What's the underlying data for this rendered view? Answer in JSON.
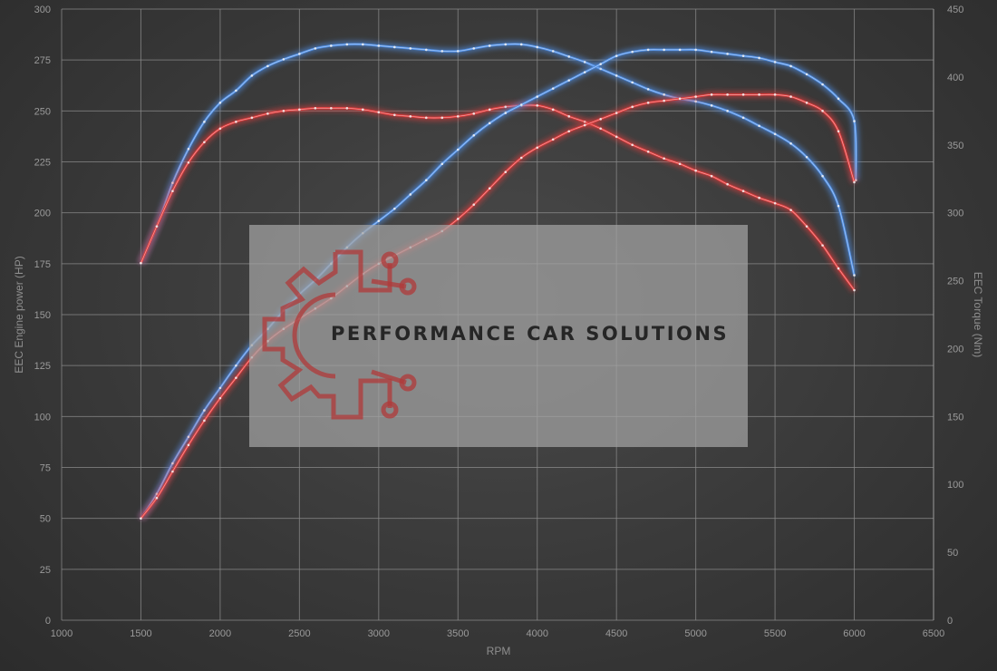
{
  "chart_data": {
    "type": "line",
    "xlabel": "RPM",
    "ylabel_left": "EEC Engine power (HP)",
    "ylabel_right": "EEC Torque (Nm)",
    "xlim": [
      1000,
      6500
    ],
    "ylim_left": [
      0,
      300
    ],
    "ylim_right": [
      0,
      450
    ],
    "x_ticks": [
      "1000",
      "1500",
      "2000",
      "2500",
      "3000",
      "3500",
      "4000",
      "4500",
      "5000",
      "5500",
      "6000",
      "6500"
    ],
    "y_left_ticks": [
      "0",
      "25",
      "50",
      "75",
      "100",
      "125",
      "150",
      "175",
      "200",
      "225",
      "250",
      "275",
      "300"
    ],
    "y_right_ticks": [
      "0",
      "50",
      "100",
      "150",
      "200",
      "250",
      "300",
      "350",
      "400",
      "450"
    ],
    "grid": true,
    "colors": {
      "tuned": "#4f8fe6",
      "stock": "#e03a3a"
    },
    "series": [
      {
        "axis": "right",
        "color_key": "tuned",
        "points": [
          [
            1500,
            263
          ],
          [
            1600,
            290
          ],
          [
            1700,
            322
          ],
          [
            1800,
            347
          ],
          [
            1900,
            367
          ],
          [
            2000,
            381
          ],
          [
            2100,
            390
          ],
          [
            2200,
            401
          ],
          [
            2300,
            408
          ],
          [
            2400,
            413
          ],
          [
            2500,
            417
          ],
          [
            2600,
            421
          ],
          [
            2700,
            423
          ],
          [
            2800,
            424
          ],
          [
            2900,
            424
          ],
          [
            3000,
            423
          ],
          [
            3100,
            422
          ],
          [
            3200,
            421
          ],
          [
            3300,
            420
          ],
          [
            3400,
            419
          ],
          [
            3500,
            419
          ],
          [
            3600,
            421
          ],
          [
            3700,
            423
          ],
          [
            3800,
            424
          ],
          [
            3900,
            424
          ],
          [
            4000,
            422
          ],
          [
            4100,
            419
          ],
          [
            4200,
            415
          ],
          [
            4300,
            411
          ],
          [
            4400,
            406
          ],
          [
            4500,
            401
          ],
          [
            4600,
            396
          ],
          [
            4700,
            391
          ],
          [
            4800,
            387
          ],
          [
            4900,
            384
          ],
          [
            5000,
            382
          ],
          [
            5100,
            379
          ],
          [
            5200,
            375
          ],
          [
            5300,
            370
          ],
          [
            5400,
            364
          ],
          [
            5500,
            358
          ],
          [
            5600,
            351
          ],
          [
            5700,
            341
          ],
          [
            5800,
            327
          ],
          [
            5900,
            305
          ],
          [
            6000,
            254
          ]
        ]
      },
      {
        "axis": "right",
        "color_key": "stock",
        "points": [
          [
            1500,
            263
          ],
          [
            1600,
            290
          ],
          [
            1700,
            316
          ],
          [
            1800,
            337
          ],
          [
            1900,
            352
          ],
          [
            2000,
            362
          ],
          [
            2100,
            367
          ],
          [
            2200,
            370
          ],
          [
            2300,
            373
          ],
          [
            2400,
            375
          ],
          [
            2500,
            376
          ],
          [
            2600,
            377
          ],
          [
            2700,
            377
          ],
          [
            2800,
            377
          ],
          [
            2900,
            376
          ],
          [
            3000,
            374
          ],
          [
            3100,
            372
          ],
          [
            3200,
            371
          ],
          [
            3300,
            370
          ],
          [
            3400,
            370
          ],
          [
            3500,
            371
          ],
          [
            3600,
            373
          ],
          [
            3700,
            376
          ],
          [
            3800,
            378
          ],
          [
            3900,
            379
          ],
          [
            4000,
            379
          ],
          [
            4100,
            376
          ],
          [
            4200,
            371
          ],
          [
            4300,
            367
          ],
          [
            4400,
            362
          ],
          [
            4500,
            356
          ],
          [
            4600,
            350
          ],
          [
            4700,
            345
          ],
          [
            4800,
            340
          ],
          [
            4900,
            336
          ],
          [
            5000,
            331
          ],
          [
            5100,
            327
          ],
          [
            5200,
            321
          ],
          [
            5300,
            316
          ],
          [
            5400,
            311
          ],
          [
            5500,
            307
          ],
          [
            5600,
            302
          ],
          [
            5700,
            290
          ],
          [
            5800,
            276
          ],
          [
            5900,
            259
          ],
          [
            6000,
            243
          ]
        ]
      },
      {
        "axis": "left",
        "color_key": "tuned",
        "points": [
          [
            1500,
            50
          ],
          [
            1600,
            62
          ],
          [
            1700,
            77
          ],
          [
            1800,
            90
          ],
          [
            1900,
            103
          ],
          [
            2000,
            114
          ],
          [
            2100,
            125
          ],
          [
            2200,
            135
          ],
          [
            2300,
            143
          ],
          [
            2400,
            152
          ],
          [
            2500,
            160
          ],
          [
            2600,
            167
          ],
          [
            2700,
            175
          ],
          [
            2800,
            183
          ],
          [
            2900,
            190
          ],
          [
            3000,
            196
          ],
          [
            3100,
            202
          ],
          [
            3200,
            209
          ],
          [
            3300,
            216
          ],
          [
            3400,
            224
          ],
          [
            3500,
            231
          ],
          [
            3600,
            238
          ],
          [
            3700,
            244
          ],
          [
            3800,
            249
          ],
          [
            3900,
            253
          ],
          [
            4000,
            257
          ],
          [
            4100,
            261
          ],
          [
            4200,
            265
          ],
          [
            4300,
            269
          ],
          [
            4400,
            273
          ],
          [
            4500,
            277
          ],
          [
            4600,
            279
          ],
          [
            4700,
            280
          ],
          [
            4800,
            280
          ],
          [
            4900,
            280
          ],
          [
            5000,
            280
          ],
          [
            5100,
            279
          ],
          [
            5200,
            278
          ],
          [
            5300,
            277
          ],
          [
            5400,
            276
          ],
          [
            5500,
            274
          ],
          [
            5600,
            272
          ],
          [
            5700,
            268
          ],
          [
            5800,
            263
          ],
          [
            5900,
            256
          ],
          [
            6000,
            245
          ],
          [
            6010,
            216
          ]
        ]
      },
      {
        "axis": "left",
        "color_key": "stock",
        "points": [
          [
            1500,
            50
          ],
          [
            1600,
            60
          ],
          [
            1700,
            73
          ],
          [
            1800,
            86
          ],
          [
            1900,
            98
          ],
          [
            2000,
            109
          ],
          [
            2100,
            119
          ],
          [
            2200,
            129
          ],
          [
            2300,
            137
          ],
          [
            2400,
            143
          ],
          [
            2500,
            148
          ],
          [
            2600,
            153
          ],
          [
            2700,
            158
          ],
          [
            2800,
            164
          ],
          [
            2900,
            170
          ],
          [
            3000,
            175
          ],
          [
            3100,
            179
          ],
          [
            3200,
            183
          ],
          [
            3300,
            187
          ],
          [
            3400,
            191
          ],
          [
            3500,
            197
          ],
          [
            3600,
            204
          ],
          [
            3700,
            212
          ],
          [
            3800,
            220
          ],
          [
            3900,
            227
          ],
          [
            4000,
            232
          ],
          [
            4100,
            236
          ],
          [
            4200,
            240
          ],
          [
            4300,
            243
          ],
          [
            4400,
            246
          ],
          [
            4500,
            249
          ],
          [
            4600,
            252
          ],
          [
            4700,
            254
          ],
          [
            4800,
            255
          ],
          [
            4900,
            256
          ],
          [
            5000,
            257
          ],
          [
            5100,
            258
          ],
          [
            5200,
            258
          ],
          [
            5300,
            258
          ],
          [
            5400,
            258
          ],
          [
            5500,
            258
          ],
          [
            5600,
            257
          ],
          [
            5700,
            254
          ],
          [
            5800,
            250
          ],
          [
            5900,
            240
          ],
          [
            6000,
            215
          ]
        ]
      }
    ]
  },
  "watermark": {
    "text": "PERFORMANCE CAR SOLUTIONS",
    "logo_icon": "gear-circuit-logo-icon"
  }
}
